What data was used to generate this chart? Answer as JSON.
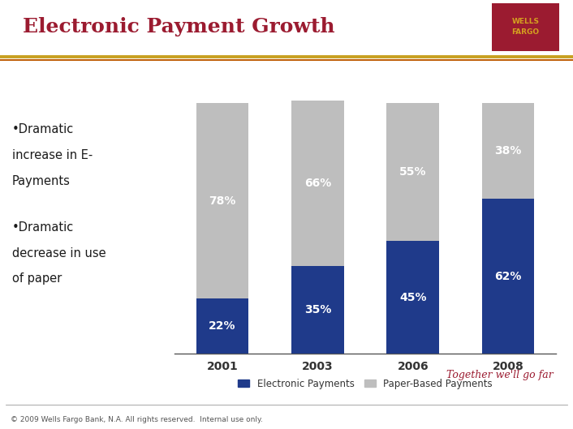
{
  "title": "Electronic Payment Growth",
  "title_color": "#9B1B30",
  "background_color": "#FFFFFF",
  "categories": [
    "2001",
    "2003",
    "2006",
    "2008"
  ],
  "electronic_payments": [
    22,
    35,
    45,
    62
  ],
  "paper_payments": [
    78,
    66,
    55,
    38
  ],
  "bar_color_electronic": "#1F3A8A",
  "bar_color_paper": "#BEBEBE",
  "bar_width": 0.55,
  "legend_electronic": "Electronic Payments",
  "legend_paper": "Paper-Based Payments",
  "footer": "© 2009 Wells Fargo Bank, N.A. All rights reserved.  Internal use only.",
  "tagline": "Together we'll go far",
  "wells_fargo_bg": "#9B1B30",
  "gold_color": "#C8A020",
  "separator_color": "#C0600A",
  "bullet1_line1": "•Dramatic",
  "bullet1_line2": "increase in E-",
  "bullet1_line3": "Payments",
  "bullet2_line1": "•Dramatic",
  "bullet2_line2": "decrease in use",
  "bullet2_line3": "of paper",
  "ylim_max": 112,
  "figwidth": 7.06,
  "figheight": 5.29,
  "dpi": 100
}
